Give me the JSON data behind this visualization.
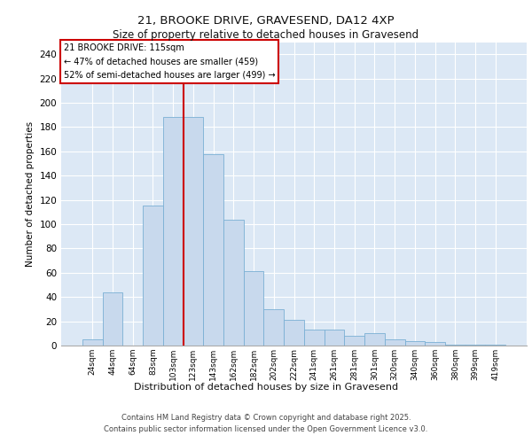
{
  "title_line1": "21, BROOKE DRIVE, GRAVESEND, DA12 4XP",
  "title_line2": "Size of property relative to detached houses in Gravesend",
  "xlabel": "Distribution of detached houses by size in Gravesend",
  "ylabel": "Number of detached properties",
  "categories": [
    "24sqm",
    "44sqm",
    "64sqm",
    "83sqm",
    "103sqm",
    "123sqm",
    "143sqm",
    "162sqm",
    "182sqm",
    "202sqm",
    "222sqm",
    "241sqm",
    "261sqm",
    "281sqm",
    "301sqm",
    "320sqm",
    "340sqm",
    "360sqm",
    "380sqm",
    "399sqm",
    "419sqm"
  ],
  "values": [
    5,
    44,
    0,
    115,
    188,
    188,
    158,
    104,
    61,
    30,
    21,
    13,
    13,
    8,
    10,
    5,
    4,
    3,
    1,
    1,
    1
  ],
  "bar_color": "#c8d9ed",
  "bar_edge_color": "#7aafd4",
  "vline_x": 4.5,
  "vline_color": "#cc0000",
  "annotation_line1": "21 BROOKE DRIVE: 115sqm",
  "annotation_line2": "← 47% of detached houses are smaller (459)",
  "annotation_line3": "52% of semi-detached houses are larger (499) →",
  "annotation_box_color": "#ffffff",
  "annotation_box_edge": "#cc0000",
  "ylim": [
    0,
    250
  ],
  "yticks": [
    0,
    20,
    40,
    60,
    80,
    100,
    120,
    140,
    160,
    180,
    200,
    220,
    240
  ],
  "background_color": "#dce8f5",
  "grid_color": "#ffffff",
  "footer_line1": "Contains HM Land Registry data © Crown copyright and database right 2025.",
  "footer_line2": "Contains public sector information licensed under the Open Government Licence v3.0."
}
